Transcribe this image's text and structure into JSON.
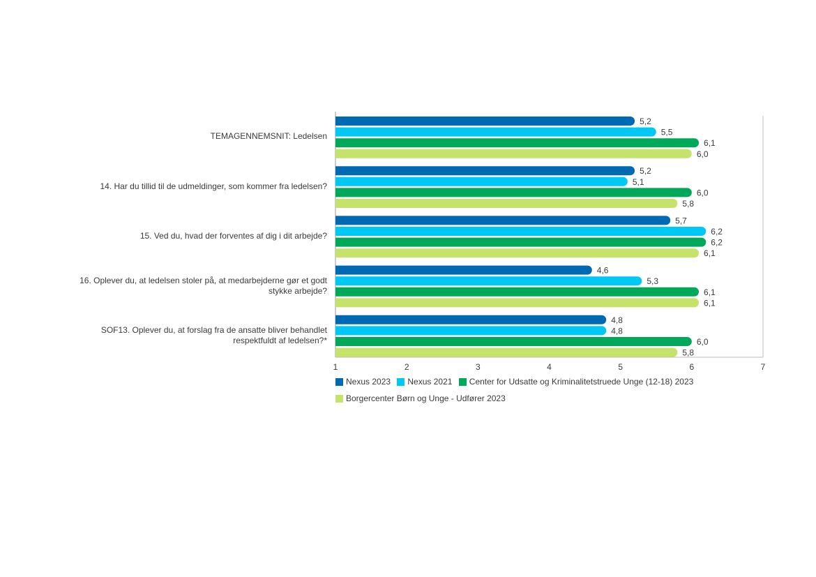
{
  "chart_data": {
    "type": "bar",
    "orientation": "horizontal",
    "categories": [
      "TEMAGENNEMSNIT: Ledelsen",
      "14. Har du tillid til de udmeldinger, som kommer fra ledelsen?",
      "15. Ved du, hvad der forventes af dig i dit arbejde?",
      "16. Oplever du, at ledelsen stoler på, at medarbejderne gør et godt stykke arbejde?",
      "SOF13. Oplever du, at forslag fra de ansatte bliver behandlet respektfuldt af ledelsen?*"
    ],
    "category_lines": [
      [
        "TEMAGENNEMSNIT: Ledelsen"
      ],
      [
        "14. Har du tillid til de udmeldinger, som kommer fra ledelsen?"
      ],
      [
        "15. Ved du, hvad der forventes af dig i dit arbejde?"
      ],
      [
        "16. Oplever du, at ledelsen stoler på, at medarbejderne gør et godt",
        "stykke arbejde?"
      ],
      [
        "SOF13. Oplever du, at forslag fra de ansatte bliver behandlet",
        "respektfuldt af ledelsen?*"
      ]
    ],
    "series": [
      {
        "name": "Nexus 2023",
        "color": "#0069b4",
        "values": [
          5.2,
          5.2,
          5.7,
          4.6,
          4.8
        ],
        "labels": [
          "5,2",
          "5,2",
          "5,7",
          "4,6",
          "4,8"
        ]
      },
      {
        "name": "Nexus 2021",
        "color": "#00c8f5",
        "values": [
          5.5,
          5.1,
          6.2,
          5.3,
          4.8
        ],
        "labels": [
          "5,5",
          "5,1",
          "6,2",
          "5,3",
          "4,8"
        ]
      },
      {
        "name": "Center for Udsatte og Kriminalitetstruede Unge (12-18) 2023",
        "color": "#00a85a",
        "values": [
          6.1,
          6.0,
          6.2,
          6.1,
          6.0
        ],
        "labels": [
          "6,1",
          "6,0",
          "6,2",
          "6,1",
          "6,0"
        ]
      },
      {
        "name": "Borgercenter Børn og Unge - Udfører 2023",
        "color": "#c5e26a",
        "values": [
          6.0,
          5.8,
          6.1,
          6.1,
          5.8
        ],
        "labels": [
          "6,0",
          "5,8",
          "6,1",
          "6,1",
          "5,8"
        ]
      }
    ],
    "xlim": [
      1,
      7
    ],
    "xticks": [
      "1",
      "2",
      "3",
      "4",
      "5",
      "6",
      "7"
    ],
    "grid": false,
    "legend": "bottom"
  }
}
